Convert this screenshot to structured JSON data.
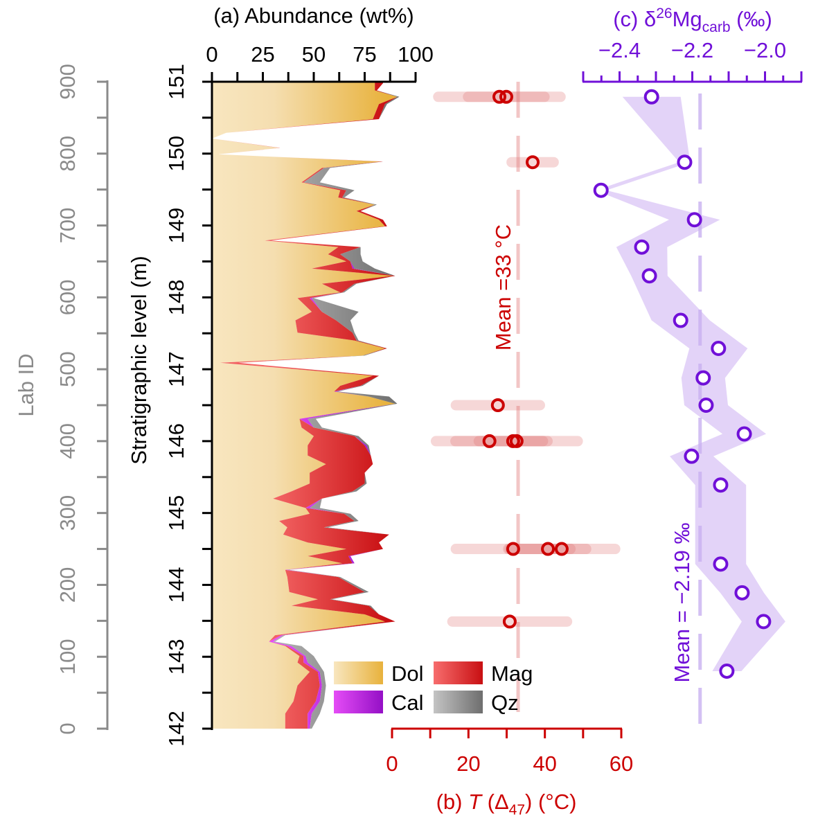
{
  "chart_data": [
    {
      "panel": "a",
      "type": "area",
      "title": "(a) Abundance (wt%)",
      "xlim": [
        0,
        100
      ],
      "x_ticks": [
        "0",
        "25",
        "50",
        "75",
        "100"
      ],
      "ylabel": "Stratigraphic level (m)",
      "ylim": [
        142,
        151
      ],
      "y_ticks": [
        "142",
        "143",
        "144",
        "145",
        "146",
        "147",
        "148",
        "149",
        "150",
        "151"
      ],
      "secondary_ylabel": "Lab ID",
      "secondary_ylim": [
        0,
        900
      ],
      "secondary_y_ticks": [
        "0",
        "100",
        "200",
        "300",
        "400",
        "500",
        "600",
        "700",
        "800",
        "900"
      ],
      "stacked": true,
      "series_order": [
        "Dol",
        "Mag",
        "Cal",
        "Qz"
      ],
      "legend": [
        {
          "name": "Dol",
          "colors": [
            "#f8e6bf",
            "#e8b23c"
          ]
        },
        {
          "name": "Mag",
          "colors": [
            "#f76d6d",
            "#c80f12"
          ]
        },
        {
          "name": "Cal",
          "colors": [
            "#e54cf6",
            "#9410c6"
          ]
        },
        {
          "name": "Qz",
          "colors": [
            "#c4c4c4",
            "#6e6e6e"
          ]
        }
      ],
      "legend_placement": "bottom-right",
      "columns": [
        "level_m",
        "Dol",
        "Mag",
        "Cal",
        "Qz"
      ],
      "rows": [
        [
          151.0,
          80,
          4,
          0,
          0
        ],
        [
          150.98,
          80,
          4,
          0,
          0
        ],
        [
          150.88,
          80,
          1,
          0,
          0
        ],
        [
          150.79,
          91,
          0,
          0,
          1
        ],
        [
          150.69,
          82,
          3,
          0,
          1
        ],
        [
          150.48,
          79,
          3,
          0,
          0
        ],
        [
          150.29,
          7,
          0,
          0,
          0
        ],
        [
          150.21,
          0,
          0,
          0,
          0
        ],
        [
          150.08,
          33,
          0.5,
          0,
          0
        ],
        [
          149.99,
          3,
          0,
          0,
          0
        ],
        [
          149.89,
          83,
          1,
          0,
          0
        ],
        [
          149.8,
          54,
          1,
          0,
          3
        ],
        [
          149.6,
          44,
          1,
          0,
          8
        ],
        [
          149.49,
          63,
          3,
          0,
          4
        ],
        [
          149.39,
          62,
          2,
          0,
          1
        ],
        [
          149.29,
          80,
          0,
          0,
          1
        ],
        [
          149.2,
          71,
          2,
          0,
          0
        ],
        [
          149.08,
          82,
          2,
          0,
          0
        ],
        [
          148.99,
          85,
          1,
          0,
          0
        ],
        [
          148.79,
          26,
          3,
          0,
          0
        ],
        [
          148.7,
          62,
          11,
          0,
          0
        ],
        [
          148.6,
          57,
          6,
          0,
          10
        ],
        [
          148.5,
          66,
          2,
          0,
          6
        ],
        [
          148.4,
          49,
          20,
          1,
          10
        ],
        [
          148.3,
          89,
          1,
          0,
          0
        ],
        [
          148.19,
          54,
          16,
          0,
          1
        ],
        [
          148.07,
          63,
          1,
          0,
          1
        ],
        [
          147.99,
          42,
          6,
          1,
          1
        ],
        [
          147.8,
          49,
          5,
          0,
          18
        ],
        [
          147.68,
          41,
          20,
          0,
          7
        ],
        [
          147.51,
          42,
          27,
          0,
          1
        ],
        [
          147.4,
          70,
          1,
          0,
          1
        ],
        [
          147.29,
          85,
          1,
          0,
          0
        ],
        [
          147.19,
          74,
          0,
          0,
          1
        ],
        [
          147.09,
          4,
          9,
          0,
          0
        ],
        [
          146.91,
          79,
          3,
          0,
          0
        ],
        [
          146.77,
          63,
          10,
          0,
          1
        ],
        [
          146.69,
          60,
          0,
          1,
          1
        ],
        [
          146.62,
          77,
          0,
          0,
          10
        ],
        [
          146.52,
          90,
          0,
          0,
          1
        ],
        [
          146.31,
          43,
          0,
          4,
          4
        ],
        [
          146.19,
          44,
          6,
          0,
          4
        ],
        [
          146.07,
          50,
          20,
          0,
          2
        ],
        [
          145.94,
          47,
          28,
          1,
          1
        ],
        [
          145.8,
          47,
          31,
          0,
          0
        ],
        [
          145.68,
          56,
          23,
          0,
          0
        ],
        [
          145.56,
          48,
          27,
          0,
          0
        ],
        [
          145.41,
          48,
          27,
          0,
          1
        ],
        [
          145.3,
          39,
          30,
          0,
          2
        ],
        [
          145.2,
          30,
          24,
          0,
          0
        ],
        [
          145.07,
          46,
          0,
          2,
          5
        ],
        [
          144.99,
          48,
          17,
          0,
          3
        ],
        [
          144.89,
          33,
          37,
          0,
          2
        ],
        [
          144.8,
          37,
          18,
          0,
          2
        ],
        [
          144.7,
          35,
          52,
          0,
          0
        ],
        [
          144.59,
          47,
          35,
          0,
          0
        ],
        [
          144.5,
          66,
          18,
          0,
          0
        ],
        [
          144.4,
          47,
          20,
          1,
          0
        ],
        [
          144.3,
          64,
          5,
          1,
          0
        ],
        [
          144.21,
          36,
          0,
          1,
          1
        ],
        [
          144.11,
          37,
          25,
          0,
          1
        ],
        [
          143.9,
          38,
          37,
          0,
          2
        ],
        [
          143.8,
          52,
          6,
          0,
          1
        ],
        [
          143.71,
          39,
          38,
          0,
          1
        ],
        [
          143.59,
          75,
          7,
          0,
          0
        ],
        [
          143.49,
          85,
          5,
          0,
          0
        ],
        [
          143.3,
          31,
          3,
          1,
          1
        ],
        [
          143.21,
          28,
          0,
          2,
          1
        ],
        [
          143.15,
          36,
          1,
          2,
          5
        ],
        [
          143.01,
          43,
          2,
          1,
          4
        ],
        [
          142.92,
          42,
          3,
          2,
          5
        ],
        [
          142.79,
          48,
          4,
          1,
          2
        ],
        [
          142.6,
          42,
          11,
          1,
          2
        ],
        [
          142.38,
          40,
          11,
          2,
          2
        ],
        [
          142.21,
          36,
          11,
          2,
          4
        ],
        [
          142.0,
          36,
          11,
          1,
          1
        ]
      ]
    },
    {
      "panel": "b",
      "type": "scatter",
      "title_prefix": "(b) ",
      "title_var": "T",
      "title_mid": " (Δ",
      "title_sub": "47",
      "title_suffix": ") (°C)",
      "xlim": [
        0,
        60
      ],
      "x_ticks": [
        "0",
        "20",
        "40",
        "60"
      ],
      "color": "#cc0000",
      "mean_value": 33,
      "mean_label": "Mean =33 °C",
      "points": [
        {
          "level": 150.79,
          "T": 28.1,
          "err": 16
        },
        {
          "level": 150.79,
          "T": 29.9,
          "err": 10
        },
        {
          "level": 149.88,
          "T": 36.8,
          "err": 5.5
        },
        {
          "level": 146.5,
          "T": 27.7,
          "err": 11
        },
        {
          "level": 146.0,
          "T": 25.5,
          "err": 14
        },
        {
          "level": 146.0,
          "T": 31.7,
          "err": 9
        },
        {
          "level": 146.0,
          "T": 32.6,
          "err": 16
        },
        {
          "level": 144.5,
          "T": 31.7,
          "err": 15
        },
        {
          "level": 144.5,
          "T": 40.8,
          "err": 10
        },
        {
          "level": 144.5,
          "T": 44.4,
          "err": 14
        },
        {
          "level": 143.49,
          "T": 30.8,
          "err": 15
        }
      ]
    },
    {
      "panel": "c",
      "type": "line",
      "title_prefix": "(c) δ",
      "title_sup": "26",
      "title_mid": "Mg",
      "title_sub": "carb",
      "title_suffix": " (‰)",
      "xlim": [
        -2.5,
        -1.9
      ],
      "x_ticks": [
        {
          "v": -2.4,
          "label": "−2.4"
        },
        {
          "v": -2.2,
          "label": "−2.2"
        },
        {
          "v": -2.0,
          "label": "−2.0"
        }
      ],
      "color": "#7010d8",
      "band_color": "#d9c4f5",
      "mean_value": -2.19,
      "mean_label": "Mean = −2.19 ‰",
      "points": [
        {
          "level": 150.79,
          "d": -2.312,
          "err": 0.08
        },
        {
          "level": 149.88,
          "d": -2.221,
          "err": 0.015
        },
        {
          "level": 149.49,
          "d": -2.451,
          "err": 0.015
        },
        {
          "level": 149.08,
          "d": -2.194,
          "err": 0.07
        },
        {
          "level": 148.7,
          "d": -2.339,
          "err": 0.07
        },
        {
          "level": 148.3,
          "d": -2.318,
          "err": 0.05
        },
        {
          "level": 147.68,
          "d": -2.232,
          "err": 0.08
        },
        {
          "level": 147.29,
          "d": -2.128,
          "err": 0.08
        },
        {
          "level": 146.88,
          "d": -2.17,
          "err": 0.06
        },
        {
          "level": 146.5,
          "d": -2.162,
          "err": 0.06
        },
        {
          "level": 146.1,
          "d": -2.057,
          "err": 0.06
        },
        {
          "level": 145.79,
          "d": -2.202,
          "err": 0.06
        },
        {
          "level": 145.39,
          "d": -2.122,
          "err": 0.07
        },
        {
          "level": 144.29,
          "d": -2.122,
          "err": 0.07
        },
        {
          "level": 143.89,
          "d": -2.063,
          "err": 0.06
        },
        {
          "level": 143.49,
          "d": -2.004,
          "err": 0.06
        },
        {
          "level": 142.8,
          "d": -2.105,
          "err": 0.04
        }
      ]
    }
  ]
}
